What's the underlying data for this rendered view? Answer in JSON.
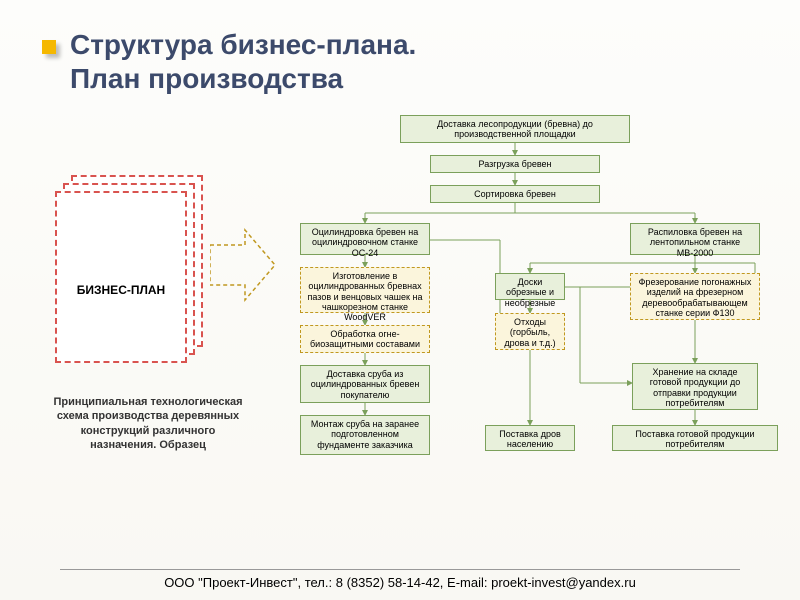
{
  "title": "Структура бизнес-плана.\nПлан производства",
  "left": {
    "bpLabel": "БИЗНЕС-ПЛАН",
    "caption": "Принципиальная технологическая схема производства деревянных конструкций различного назначения. Образец"
  },
  "nodes": {
    "n1": "Доставка лесопродукции (бревна) до производственной площадки",
    "n2": "Разгрузка бревен",
    "n3": "Сортировка бревен",
    "n4": "Оцилиндровка бревен на оцилиндровочном станке ОС-24",
    "n5": "Распиловка бревен на лентопильном станке МВ-2000",
    "n6": "Изготовление в оцилиндрованных бревнах пазов и венцовых чашек на чашкорезном станке WoodVER",
    "n7": "Доски обрезные и необрезные",
    "n8": "Фрезерование погонажных изделий на фрезерном деревообрабатывающем станке серии Ф130",
    "n9": "Отходы (горбыль, дрова и т.д.)",
    "n10": "Обработка огне-биозащитными составами",
    "n11": "Доставка сруба из оцилиндрованных бревен покупателю",
    "n12": "Хранение на складе готовой продукции до отправки продукции потребителям",
    "n13": "Монтаж сруба на заранее подготовленном фундаменте заказчика",
    "n14": "Поставка дров населению",
    "n15": "Поставка готовой продукции потребителям"
  },
  "footer": "ООО \"Проект-Инвест\", тел.: 8 (8352) 58-14-42, E-mail: proekt-invest@yandex.ru",
  "style": {
    "type": "flowchart",
    "node_bg": "#e8f0db",
    "node_border": "#7ba05b",
    "dash_bg": "#fbf5dc",
    "dash_border": "#c09820",
    "title_color": "#3c4a6b",
    "bullet_color": "#f5b800",
    "frame_border": "#d9534f",
    "font_node": 9,
    "font_title": 28,
    "font_caption": 11,
    "font_footer": 13
  }
}
